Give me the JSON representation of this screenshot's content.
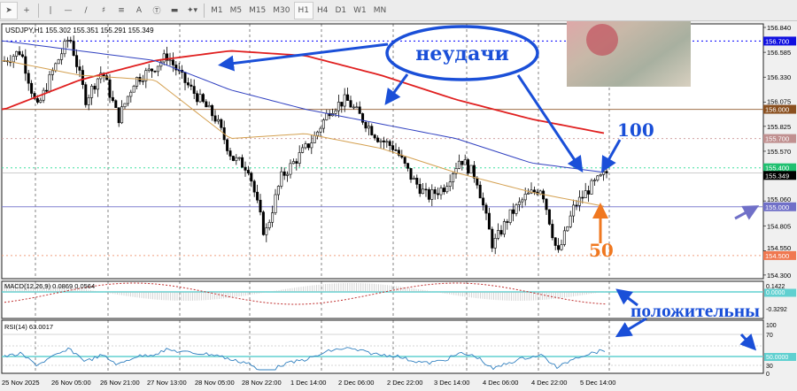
{
  "toolbar": {
    "tools": [
      "cursor-icon",
      "crosshair-icon",
      "vertical-line-icon",
      "horizontal-line-icon",
      "trendline-icon",
      "fibonacci-icon",
      "channel-icon",
      "text-icon",
      "text-label-icon",
      "rectangle-icon",
      "shapes-icon"
    ],
    "text_tool": "A",
    "timeframes": [
      "M1",
      "M5",
      "M15",
      "M30",
      "H1",
      "H4",
      "D1",
      "W1",
      "MN"
    ],
    "active_timeframe": "H1"
  },
  "chart": {
    "symbol_info": "USDJPY,H1  155.302 155.351 155.291 155.349",
    "price_ticks": [
      "156.840",
      "156.585",
      "156.330",
      "156.075",
      "155.825",
      "155.570",
      "155.060",
      "154.805",
      "154.550",
      "154.300"
    ],
    "level_labels": {
      "l156700": "156.700",
      "l156000": "156.000",
      "l155700": "155.700",
      "l155400": "155.400",
      "current": "155.349",
      "l155000": "155.000",
      "l154500": "154.500"
    },
    "colors": {
      "bull": "#000000",
      "ma_red": "#e02020",
      "ma_blue": "#3040c0",
      "ma_tan": "#d4a050",
      "annotation": "#1a4fd8",
      "orange": "#f07820"
    },
    "time_labels": [
      "25 Nov 2025",
      "26 Nov 05:00",
      "26 Nov 21:00",
      "27 Nov 13:00",
      "28 Nov 05:00",
      "28 Nov 22:00",
      "1 Dec 14:00",
      "2 Dec 06:00",
      "2 Dec 22:00",
      "3 Dec 14:00",
      "4 Dec 06:00",
      "4 Dec 22:00",
      "5 Dec 14:00"
    ]
  },
  "chart_data": {
    "type": "candlestick",
    "symbol": "USDJPY",
    "timeframe": "H1",
    "ylim": [
      154.3,
      156.84
    ],
    "close_path": [
      156.5,
      156.6,
      156.0,
      156.4,
      156.75,
      156.1,
      156.4,
      155.9,
      156.3,
      156.4,
      156.55,
      156.3,
      156.1,
      155.9,
      155.5,
      155.4,
      154.7,
      155.3,
      155.5,
      155.7,
      156.0,
      156.1,
      155.9,
      155.7,
      155.6,
      155.3,
      155.1,
      155.2,
      155.5,
      155.3,
      154.6,
      154.9,
      155.1,
      155.2,
      154.5,
      155.0,
      155.2,
      155.35
    ],
    "ma_red": [
      156.0,
      156.3,
      156.5,
      156.6,
      156.55,
      156.35,
      156.1,
      155.9,
      155.75
    ],
    "ma_blue": [
      156.7,
      156.6,
      156.5,
      156.2,
      156.0,
      155.85,
      155.7,
      155.45,
      155.35
    ],
    "ma_tan": [
      156.5,
      156.35,
      156.3,
      155.7,
      155.75,
      155.6,
      155.35,
      155.15,
      155.0
    ]
  },
  "macd": {
    "label": "MACD(12,26,9) 0.0869 0.0564",
    "ticks": [
      "0.1422",
      "0.0000",
      "-0.3292"
    ]
  },
  "rsi": {
    "label": "RSI(14) 63.0017",
    "ticks": [
      "100",
      "70",
      "50.0000",
      "30",
      "0"
    ]
  },
  "annotations": {
    "failures": "неудачи",
    "ma100": "100",
    "ma50": "50",
    "positive": "положительны"
  }
}
